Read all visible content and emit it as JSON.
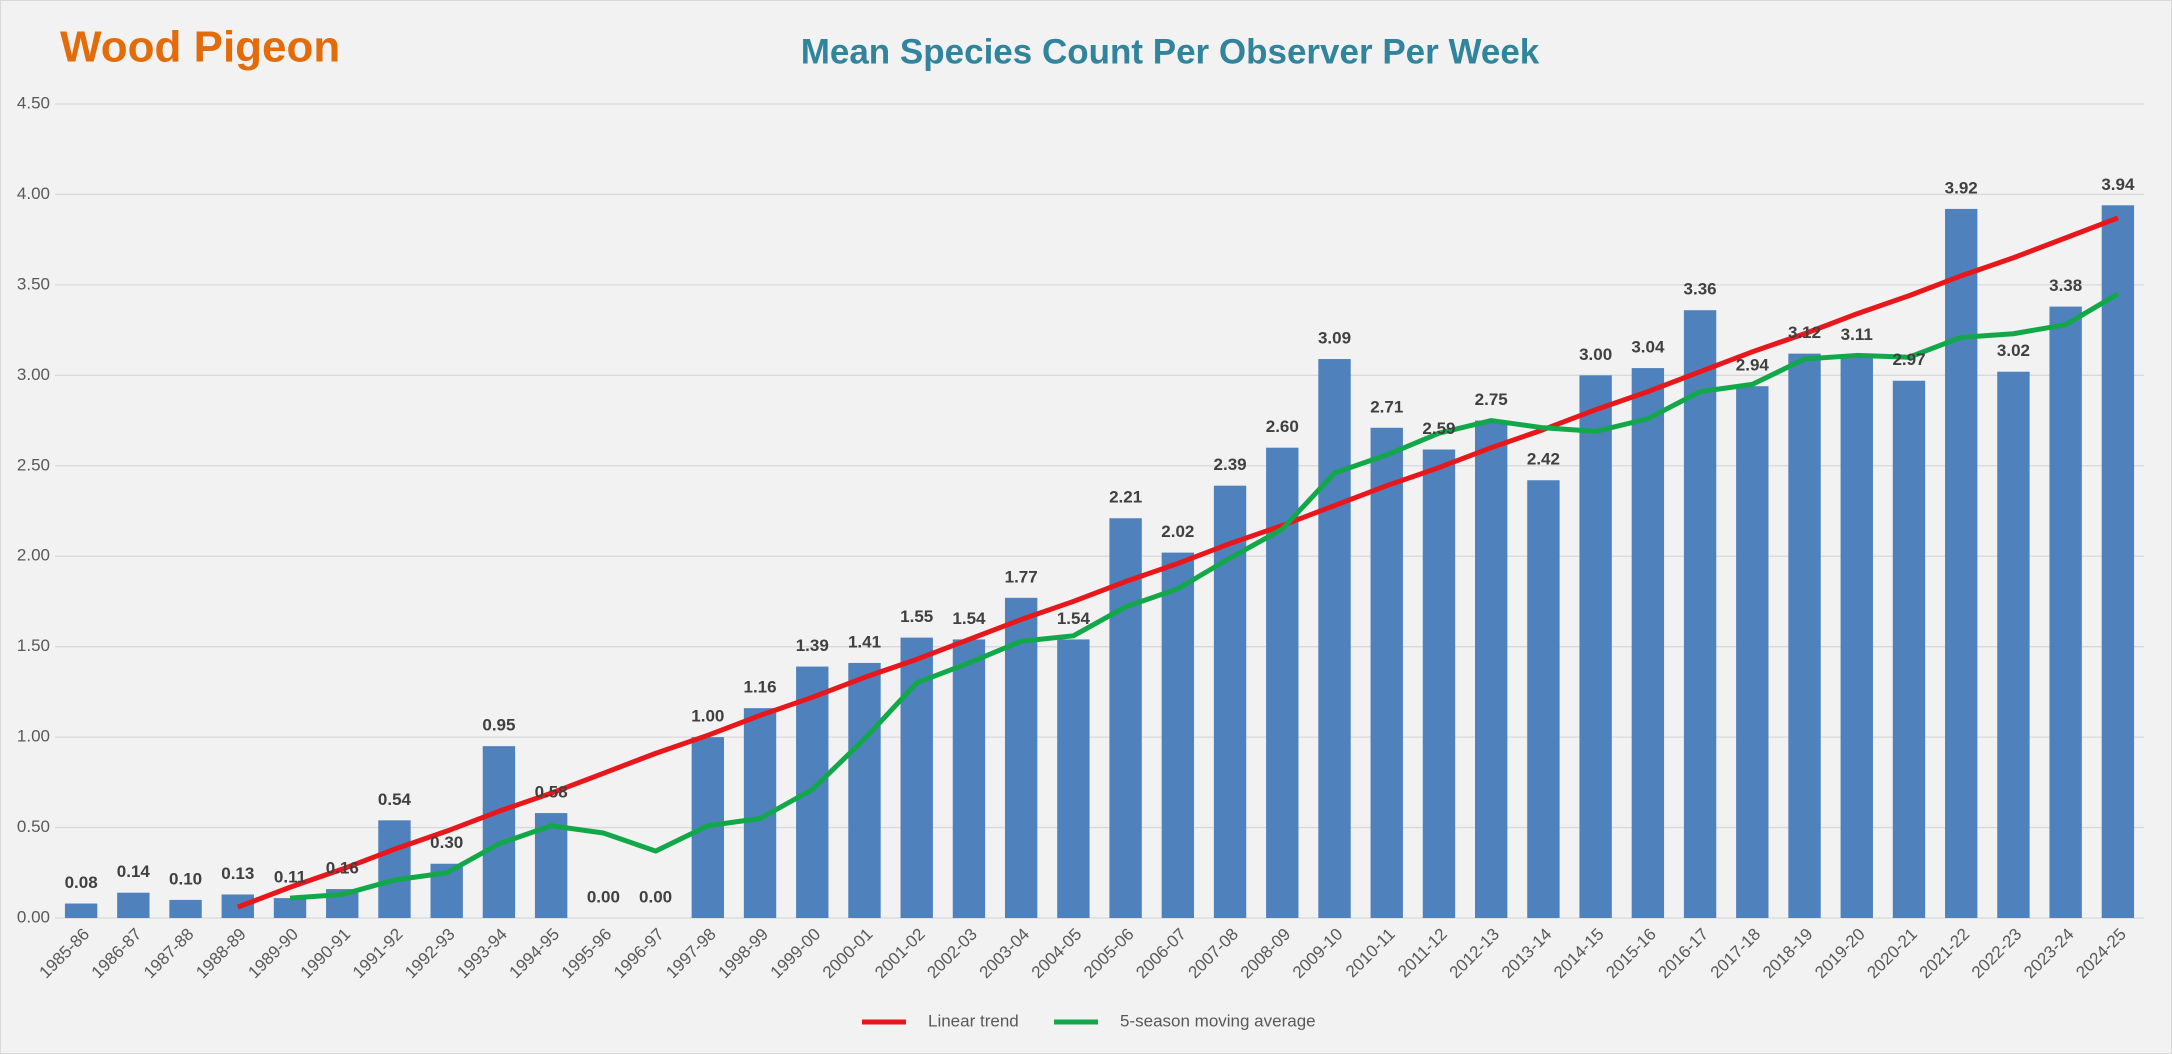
{
  "chart_data": {
    "type": "bar",
    "species": "Wood Pigeon",
    "title": "Mean Species Count Per Observer Per Week",
    "categories": [
      "1985-86",
      "1986-87",
      "1987-88",
      "1988-89",
      "1989-90",
      "1990-91",
      "1991-92",
      "1992-93",
      "1993-94",
      "1994-95",
      "1995-96",
      "1996-97",
      "1997-98",
      "1998-99",
      "1999-00",
      "2000-01",
      "2001-02",
      "2002-03",
      "2003-04",
      "2004-05",
      "2005-06",
      "2006-07",
      "2007-08",
      "2008-09",
      "2009-10",
      "2010-11",
      "2011-12",
      "2012-13",
      "2013-14",
      "2014-15",
      "2015-16",
      "2016-17",
      "2017-18",
      "2018-19",
      "2019-20",
      "2020-21",
      "2021-22",
      "2022-23",
      "2023-24",
      "2024-25"
    ],
    "values": [
      0.08,
      0.14,
      0.1,
      0.13,
      0.11,
      0.16,
      0.54,
      0.3,
      0.95,
      0.58,
      0.0,
      0.0,
      1.0,
      1.16,
      1.39,
      1.41,
      1.55,
      1.54,
      1.77,
      1.54,
      2.21,
      2.02,
      2.39,
      2.6,
      3.09,
      2.71,
      2.59,
      2.75,
      2.42,
      3.0,
      3.04,
      3.36,
      2.94,
      3.12,
      3.11,
      2.97,
      3.92,
      3.02,
      3.38,
      3.94
    ],
    "value_labels": [
      "0.08",
      "0.14",
      "0.10",
      "0.13",
      "0.11",
      "0.16",
      "0.54",
      "0.30",
      "0.95",
      "0.58",
      "0.00",
      "0.00",
      "1.00",
      "1.16",
      "1.39",
      "1.41",
      "1.55",
      "1.54",
      "1.77",
      "1.54",
      "2.21",
      "2.02",
      "2.39",
      "2.60",
      "3.09",
      "2.71",
      "2.59",
      "2.75",
      "2.42",
      "3.00",
      "3.04",
      "3.36",
      "2.94",
      "3.12",
      "3.11",
      "2.97",
      "3.92",
      "3.02",
      "3.38",
      "3.94"
    ],
    "color": "#4f81bd",
    "series": [
      {
        "name": "Linear trend",
        "color": "#e8171b",
        "values": [
          null,
          null,
          null,
          0.06,
          0.17,
          0.27,
          0.38,
          0.48,
          0.59,
          0.69,
          0.8,
          0.91,
          1.01,
          1.12,
          1.22,
          1.33,
          1.43,
          1.54,
          1.65,
          1.75,
          1.86,
          1.96,
          2.07,
          2.17,
          2.28,
          2.39,
          2.49,
          2.6,
          2.7,
          2.81,
          2.91,
          3.02,
          3.13,
          3.23,
          3.34,
          3.44,
          3.55,
          3.65,
          3.76,
          3.87
        ]
      },
      {
        "name": "5-season moving average",
        "color": "#12a84a",
        "values": [
          null,
          null,
          null,
          null,
          0.11,
          0.13,
          0.21,
          0.25,
          0.41,
          0.51,
          0.47,
          0.37,
          0.51,
          0.55,
          0.71,
          0.99,
          1.3,
          1.41,
          1.53,
          1.56,
          1.72,
          1.82,
          1.99,
          2.15,
          2.46,
          2.56,
          2.68,
          2.75,
          2.71,
          2.69,
          2.76,
          2.91,
          2.95,
          3.09,
          3.11,
          3.1,
          3.21,
          3.23,
          3.28,
          3.45
        ]
      }
    ],
    "ylim": [
      0,
      4.5
    ],
    "yticks": [
      {
        "value": 0,
        "label": "0.00"
      },
      {
        "value": 0.5,
        "label": "0.50"
      },
      {
        "value": 1,
        "label": "1.00"
      },
      {
        "value": 1.5,
        "label": "1.50"
      },
      {
        "value": 2,
        "label": "2.00"
      },
      {
        "value": 2.5,
        "label": "2.50"
      },
      {
        "value": 3,
        "label": "3.00"
      },
      {
        "value": 3.5,
        "label": "3.50"
      },
      {
        "value": 4,
        "label": "4.00"
      },
      {
        "value": 4.5,
        "label": "4.50"
      }
    ],
    "grid": true,
    "legend": "bottom"
  }
}
